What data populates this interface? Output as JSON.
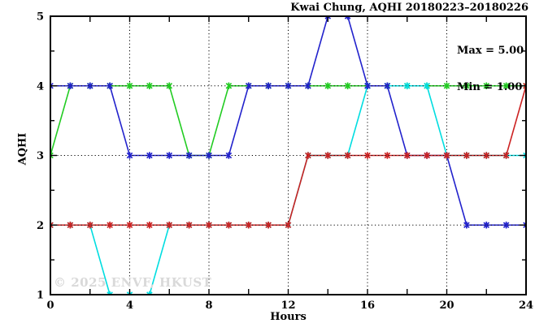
{
  "header": {
    "title": "Kwai Chung, AQHI 20180223–20180226"
  },
  "chart_data": {
    "type": "line",
    "title": "Kwai Chung, AQHI 20180223–20180226",
    "xlabel": "Hours",
    "ylabel": "AQHI",
    "xlim": [
      0,
      24
    ],
    "ylim": [
      1,
      5
    ],
    "x_ticks": [
      0,
      4,
      8,
      12,
      16,
      20,
      24
    ],
    "x_minor_tick_step": 2,
    "y_ticks": [
      1,
      2,
      3,
      4,
      5
    ],
    "y_minor_tick_step": 0.5,
    "grid": {
      "x_values": [
        4,
        8,
        12,
        16,
        20
      ],
      "y_values": [
        2,
        3,
        4
      ],
      "style": "dotted"
    },
    "annotations": [
      "Max = 5.00",
      "Min = 1.00"
    ],
    "legend_position": "none",
    "hours": [
      0,
      1,
      2,
      3,
      4,
      5,
      6,
      7,
      8,
      9,
      10,
      11,
      12,
      13,
      14,
      15,
      16,
      17,
      18,
      19,
      20,
      21,
      22,
      23,
      24
    ],
    "series": [
      {
        "name": "green-line",
        "color": "#22cc22",
        "values": [
          3,
          4,
          4,
          4,
          4,
          4,
          4,
          3,
          3,
          4,
          4,
          4,
          4,
          4,
          4,
          4,
          4,
          4,
          4,
          4,
          4,
          4,
          4,
          4,
          4
        ]
      },
      {
        "name": "cyan-line",
        "color": "#00dde0",
        "values": [
          2,
          2,
          2,
          1,
          1,
          1,
          2,
          2,
          2,
          2,
          2,
          2,
          2,
          3,
          3,
          3,
          4,
          4,
          4,
          4,
          3,
          3,
          3,
          3,
          3
        ]
      },
      {
        "name": "blue-line",
        "color": "#2222cc",
        "values": [
          4,
          4,
          4,
          4,
          3,
          3,
          3,
          3,
          3,
          3,
          4,
          4,
          4,
          4,
          5,
          5,
          4,
          4,
          3,
          3,
          3,
          2,
          2,
          2,
          2
        ]
      },
      {
        "name": "red-line",
        "color": "#cc2222",
        "values": [
          2,
          2,
          2,
          2,
          2,
          2,
          2,
          2,
          2,
          2,
          2,
          2,
          2,
          3,
          3,
          3,
          3,
          3,
          3,
          3,
          3,
          3,
          3,
          3,
          4
        ]
      }
    ],
    "axis_color": "#000000",
    "grid_color": "#000000",
    "max_value": 5.0,
    "min_value": 1.0
  },
  "watermark": {
    "text": "© 2025 ENVF, HKUST"
  }
}
